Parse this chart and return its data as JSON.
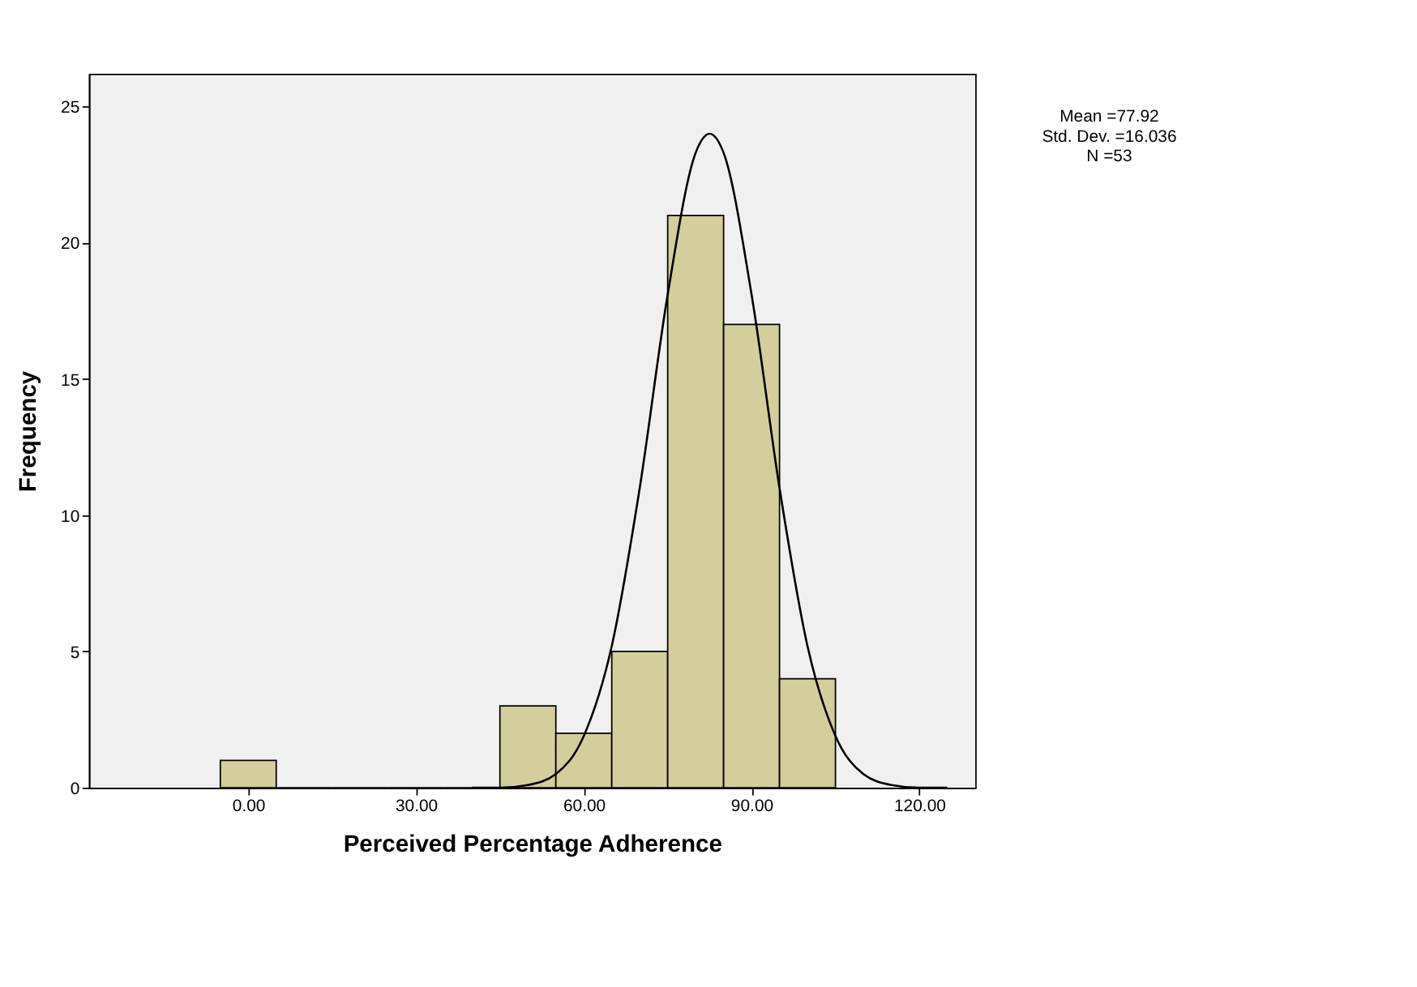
{
  "chart_data": {
    "type": "histogram",
    "xlabel": "Perceived Percentage Adherence",
    "ylabel": "Frequency",
    "bins": [
      -5,
      5,
      15,
      25,
      35,
      45,
      55,
      65,
      75,
      85,
      95,
      105
    ],
    "values": [
      1,
      0,
      0,
      0,
      0,
      3,
      2,
      5,
      21,
      17,
      4
    ],
    "color": "#d3ce9b",
    "series": [
      {
        "type": "line",
        "color": "#000000",
        "x": [
          40,
          45,
          50,
          55,
          60,
          65,
          70,
          75,
          80,
          82.5,
          85,
          90,
          95,
          100,
          105,
          110,
          115,
          120,
          125
        ],
        "values": [
          0,
          0,
          0.1,
          0.5,
          1.9,
          5.2,
          11,
          18.1,
          23.3,
          24,
          23.3,
          18.1,
          11,
          5.2,
          1.9,
          0.5,
          0.1,
          0,
          0
        ]
      }
    ],
    "xlim": [
      -28.5,
      130
    ],
    "xticks": [
      {
        "value": 0,
        "label": "0.00"
      },
      {
        "value": 30,
        "label": "30.00"
      },
      {
        "value": 60,
        "label": "60.00"
      },
      {
        "value": 90,
        "label": "90.00"
      },
      {
        "value": 120,
        "label": "120.00"
      }
    ],
    "ylim": [
      0,
      26.2
    ],
    "yticks": [
      0,
      5,
      10,
      15,
      20,
      25
    ],
    "grid": false,
    "annotations": [
      "Mean =77.92",
      "Std. Dev. =16.036",
      "N =53"
    ]
  }
}
